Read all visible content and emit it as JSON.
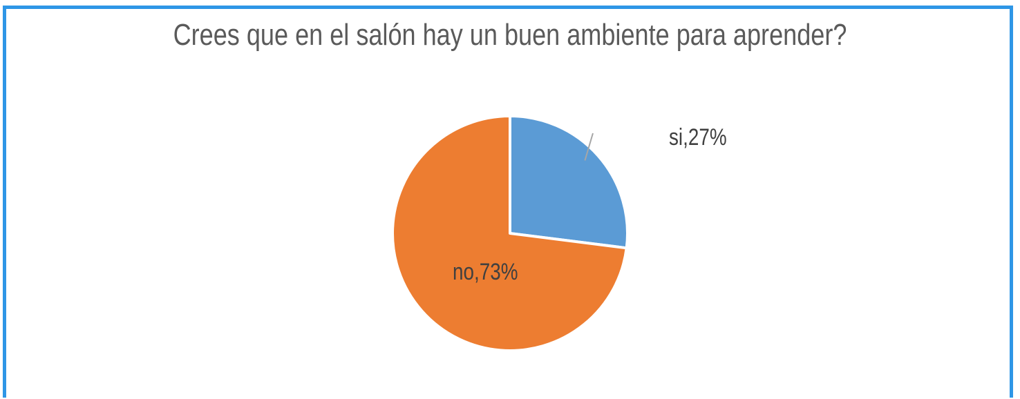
{
  "chart_data": {
    "type": "pie",
    "title": "Crees que en el salón hay un buen ambiente para aprender?",
    "slices": [
      {
        "label": "si",
        "value": 27,
        "data_label": "si,27%",
        "color": "#5b9bd5"
      },
      {
        "label": "no",
        "value": 73,
        "data_label": "no,73%",
        "color": "#ed7d31"
      }
    ],
    "legend": "none"
  }
}
